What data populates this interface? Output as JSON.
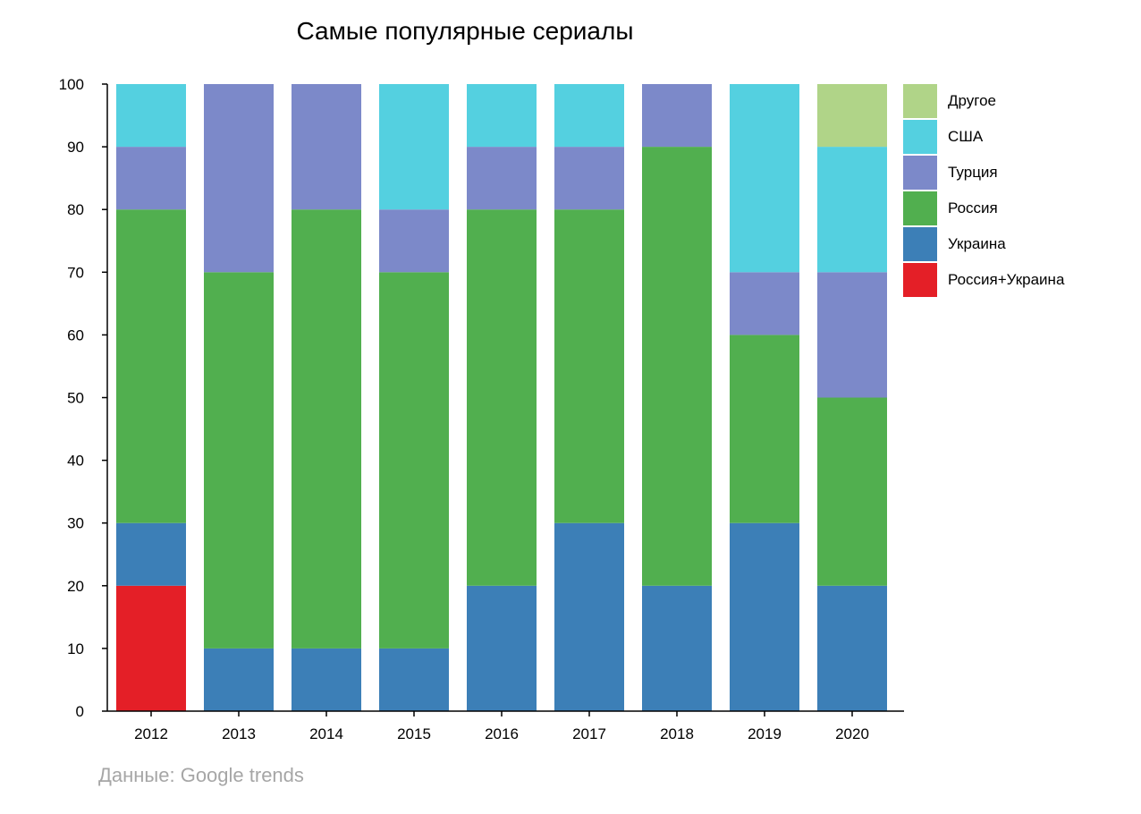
{
  "chart_data": {
    "type": "bar",
    "stacked": true,
    "title": "Самые популярные сериалы",
    "source": "Данные: Google trends",
    "categories": [
      "2012",
      "2013",
      "2014",
      "2015",
      "2016",
      "2017",
      "2018",
      "2019",
      "2020"
    ],
    "ylim": [
      0,
      100
    ],
    "yticks": [
      "0",
      "10",
      "20",
      "30",
      "40",
      "50",
      "60",
      "70",
      "80",
      "90",
      "100"
    ],
    "grid": false,
    "legend_position": "right",
    "series": [
      {
        "name": "Россия+Украина",
        "color": "#e41f27",
        "values": [
          20,
          0,
          0,
          0,
          0,
          0,
          0,
          0,
          0
        ]
      },
      {
        "name": "Украина",
        "color": "#3c7fb7",
        "values": [
          10,
          10,
          10,
          10,
          20,
          30,
          20,
          30,
          20
        ]
      },
      {
        "name": "Россия",
        "color": "#51af4f",
        "values": [
          50,
          60,
          70,
          60,
          60,
          50,
          70,
          30,
          30
        ]
      },
      {
        "name": "Турция",
        "color": "#7c89c9",
        "values": [
          10,
          30,
          20,
          10,
          10,
          10,
          10,
          10,
          20
        ]
      },
      {
        "name": "США",
        "color": "#54d0e0",
        "values": [
          10,
          0,
          0,
          20,
          10,
          10,
          0,
          30,
          20
        ]
      },
      {
        "name": "Другое",
        "color": "#b0d488",
        "values": [
          0,
          0,
          0,
          0,
          0,
          0,
          0,
          0,
          10
        ]
      }
    ]
  }
}
